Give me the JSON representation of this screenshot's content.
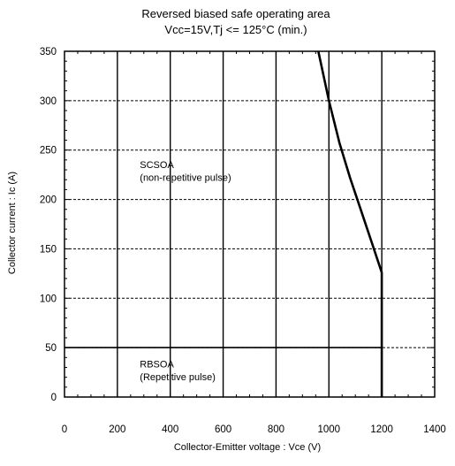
{
  "chart_data": {
    "type": "line",
    "title": "Reversed biased safe operating area",
    "subtitle": "Vcc=15V,Tj <= 125°C (min.)",
    "xlabel": "Collector-Emitter voltage : Vce (V)",
    "ylabel": "Collector current : Ic (A)",
    "xlim": [
      0,
      1400
    ],
    "ylim": [
      0,
      350
    ],
    "x_ticks": [
      0,
      200,
      400,
      600,
      800,
      1000,
      1200,
      1400
    ],
    "y_ticks": [
      0,
      50,
      100,
      150,
      200,
      250,
      300,
      350
    ],
    "grid": {
      "vertical": "solid",
      "horizontal": "dashed"
    },
    "series": [
      {
        "x": [
          960,
          1000,
          1040,
          1080,
          1120,
          1160,
          1200,
          1200
        ],
        "y": [
          350,
          300,
          257,
          222,
          190,
          158,
          126,
          0
        ]
      },
      {
        "x": [
          0,
          1200
        ],
        "y": [
          50,
          50
        ]
      }
    ],
    "annotations": [
      {
        "text": "SCSOA",
        "x": 285,
        "y": 232
      },
      {
        "text": "(non-repetitive pulse)",
        "x": 285,
        "y": 219
      },
      {
        "text": "RBSOA",
        "x": 285,
        "y": 30
      },
      {
        "text": "(Repetitive pulse)",
        "x": 285,
        "y": 17
      }
    ]
  }
}
